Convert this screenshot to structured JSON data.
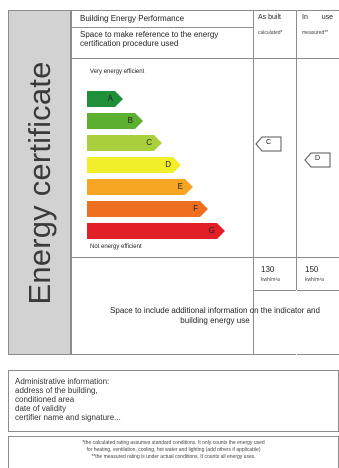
{
  "side_title": "Energy certificate",
  "header": {
    "title": "Building Energy Performance",
    "reference_note": "Space to make reference to the energy certification procedure used",
    "col_asbuilt": {
      "label": "As built",
      "sub": "calculated*"
    },
    "col_inuse": {
      "label": "In use",
      "sub": "measured**"
    }
  },
  "scale": {
    "top_label": "Very energy efficient",
    "bottom_label": "Not energy efficient",
    "bars": [
      {
        "letter": "A",
        "color": "#1f8f3a"
      },
      {
        "letter": "B",
        "color": "#5cb030"
      },
      {
        "letter": "C",
        "color": "#a8cf3c"
      },
      {
        "letter": "D",
        "color": "#f1ef2a"
      },
      {
        "letter": "E",
        "color": "#f6a623"
      },
      {
        "letter": "F",
        "color": "#ee6f1f"
      },
      {
        "letter": "G",
        "color": "#e21f26"
      }
    ]
  },
  "markers": {
    "asbuilt": {
      "letter": "C"
    },
    "inuse": {
      "letter": "D"
    }
  },
  "values": {
    "asbuilt": {
      "value": "130",
      "unit": "kwh/m²a"
    },
    "inuse": {
      "value": "150",
      "unit": "kwh/m²a"
    }
  },
  "additional_info": "Space to include additional information on the indicator and building energy use",
  "admin": {
    "lines": [
      "Administrative information:",
      "address of the building,",
      "conditioned area",
      "date of validity",
      "certifier name and signature..."
    ]
  },
  "footnote": {
    "lines": [
      "*the calculated rating assumes standard conditions. It only counts the energy used",
      "for heating, ventilation, cooling, hot water and lighting (add others if applicable)",
      "**the measured rating is under actual conditions. It counts all energy uses."
    ]
  }
}
